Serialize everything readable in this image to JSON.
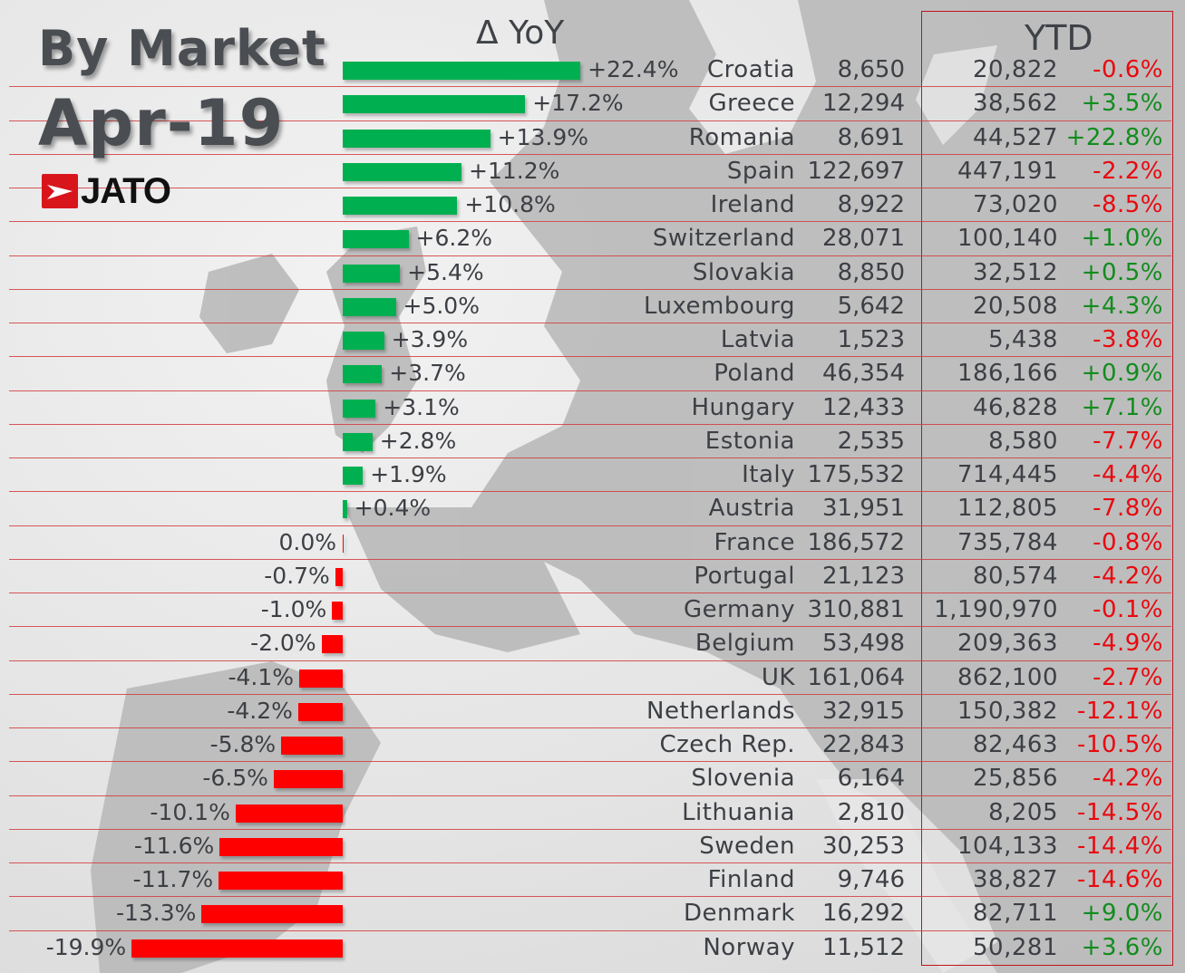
{
  "header": {
    "title_line1": "By Market",
    "title_line2": "Apr-19",
    "logo_text": "JATO",
    "yoy_header": "Δ YoY",
    "ytd_header": "YTD"
  },
  "colors": {
    "positive_bar": "#00b050",
    "negative_bar": "#ff0000",
    "ytd_positive": "#128c1e",
    "ytd_negative": "#e8090f",
    "grid_line": "#d23c3c",
    "logo_red": "#d9151c"
  },
  "rows": [
    {
      "country": "Croatia",
      "units": "8,650",
      "yoy": "+22.4%",
      "ytd_units": "20,822",
      "ytd_change": "-0.6%"
    },
    {
      "country": "Greece",
      "units": "12,294",
      "yoy": "+17.2%",
      "ytd_units": "38,562",
      "ytd_change": "+3.5%"
    },
    {
      "country": "Romania",
      "units": "8,691",
      "yoy": "+13.9%",
      "ytd_units": "44,527",
      "ytd_change": "+22.8%"
    },
    {
      "country": "Spain",
      "units": "122,697",
      "yoy": "+11.2%",
      "ytd_units": "447,191",
      "ytd_change": "-2.2%"
    },
    {
      "country": "Ireland",
      "units": "8,922",
      "yoy": "+10.8%",
      "ytd_units": "73,020",
      "ytd_change": "-8.5%"
    },
    {
      "country": "Switzerland",
      "units": "28,071",
      "yoy": "+6.2%",
      "ytd_units": "100,140",
      "ytd_change": "+1.0%"
    },
    {
      "country": "Slovakia",
      "units": "8,850",
      "yoy": "+5.4%",
      "ytd_units": "32,512",
      "ytd_change": "+0.5%"
    },
    {
      "country": "Luxembourg",
      "units": "5,642",
      "yoy": "+5.0%",
      "ytd_units": "20,508",
      "ytd_change": "+4.3%"
    },
    {
      "country": "Latvia",
      "units": "1,523",
      "yoy": "+3.9%",
      "ytd_units": "5,438",
      "ytd_change": "-3.8%"
    },
    {
      "country": "Poland",
      "units": "46,354",
      "yoy": "+3.7%",
      "ytd_units": "186,166",
      "ytd_change": "+0.9%"
    },
    {
      "country": "Hungary",
      "units": "12,433",
      "yoy": "+3.1%",
      "ytd_units": "46,828",
      "ytd_change": "+7.1%"
    },
    {
      "country": "Estonia",
      "units": "2,535",
      "yoy": "+2.8%",
      "ytd_units": "8,580",
      "ytd_change": "-7.7%"
    },
    {
      "country": "Italy",
      "units": "175,532",
      "yoy": "+1.9%",
      "ytd_units": "714,445",
      "ytd_change": "-4.4%"
    },
    {
      "country": "Austria",
      "units": "31,951",
      "yoy": "+0.4%",
      "ytd_units": "112,805",
      "ytd_change": "-7.8%"
    },
    {
      "country": "France",
      "units": "186,572",
      "yoy": "0.0%",
      "ytd_units": "735,784",
      "ytd_change": "-0.8%"
    },
    {
      "country": "Portugal",
      "units": "21,123",
      "yoy": "-0.7%",
      "ytd_units": "80,574",
      "ytd_change": "-4.2%"
    },
    {
      "country": "Germany",
      "units": "310,881",
      "yoy": "-1.0%",
      "ytd_units": "1,190,970",
      "ytd_change": "-0.1%"
    },
    {
      "country": "Belgium",
      "units": "53,498",
      "yoy": "-2.0%",
      "ytd_units": "209,363",
      "ytd_change": "-4.9%"
    },
    {
      "country": "UK",
      "units": "161,064",
      "yoy": "-4.1%",
      "ytd_units": "862,100",
      "ytd_change": "-2.7%"
    },
    {
      "country": "Netherlands",
      "units": "32,915",
      "yoy": "-4.2%",
      "ytd_units": "150,382",
      "ytd_change": "-12.1%"
    },
    {
      "country": "Czech Rep.",
      "units": "22,843",
      "yoy": "-5.8%",
      "ytd_units": "82,463",
      "ytd_change": "-10.5%"
    },
    {
      "country": "Slovenia",
      "units": "6,164",
      "yoy": "-6.5%",
      "ytd_units": "25,856",
      "ytd_change": "-4.2%"
    },
    {
      "country": "Lithuania",
      "units": "2,810",
      "yoy": "-10.1%",
      "ytd_units": "8,205",
      "ytd_change": "-14.5%"
    },
    {
      "country": "Sweden",
      "units": "30,253",
      "yoy": "-11.6%",
      "ytd_units": "104,133",
      "ytd_change": "-14.4%"
    },
    {
      "country": "Finland",
      "units": "9,746",
      "yoy": "-11.7%",
      "ytd_units": "38,827",
      "ytd_change": "-14.6%"
    },
    {
      "country": "Denmark",
      "units": "16,292",
      "yoy": "-13.3%",
      "ytd_units": "82,711",
      "ytd_change": "+9.0%"
    },
    {
      "country": "Norway",
      "units": "11,512",
      "yoy": "-19.9%",
      "ytd_units": "50,281",
      "ytd_change": "+3.6%"
    }
  ],
  "chart_data": {
    "type": "bar",
    "orientation": "horizontal",
    "title": "By Market Apr-19",
    "subtitle": "Δ YoY",
    "xlabel": "",
    "ylabel": "",
    "categories": [
      "Croatia",
      "Greece",
      "Romania",
      "Spain",
      "Ireland",
      "Switzerland",
      "Slovakia",
      "Luxembourg",
      "Latvia",
      "Poland",
      "Hungary",
      "Estonia",
      "Italy",
      "Austria",
      "France",
      "Portugal",
      "Germany",
      "Belgium",
      "UK",
      "Netherlands",
      "Czech Rep.",
      "Slovenia",
      "Lithuania",
      "Sweden",
      "Finland",
      "Denmark",
      "Norway"
    ],
    "series": [
      {
        "name": "Δ YoY (%)",
        "values": [
          22.4,
          17.2,
          13.9,
          11.2,
          10.8,
          6.2,
          5.4,
          5.0,
          3.9,
          3.7,
          3.1,
          2.8,
          1.9,
          0.4,
          0.0,
          -0.7,
          -1.0,
          -2.0,
          -4.1,
          -4.2,
          -5.8,
          -6.5,
          -10.1,
          -11.6,
          -11.7,
          -13.3,
          -19.9
        ]
      },
      {
        "name": "Apr-19 Units",
        "values": [
          8650,
          12294,
          8691,
          122697,
          8922,
          28071,
          8850,
          5642,
          1523,
          46354,
          12433,
          2535,
          175532,
          31951,
          186572,
          21123,
          310881,
          53498,
          161064,
          32915,
          22843,
          6164,
          2810,
          30253,
          9746,
          16292,
          11512
        ]
      },
      {
        "name": "YTD Units",
        "values": [
          20822,
          38562,
          44527,
          447191,
          73020,
          100140,
          32512,
          20508,
          5438,
          186166,
          46828,
          8580,
          714445,
          112805,
          735784,
          80574,
          1190970,
          209363,
          862100,
          150382,
          82463,
          25856,
          8205,
          104133,
          38827,
          82711,
          50281
        ]
      },
      {
        "name": "YTD Change (%)",
        "values": [
          -0.6,
          3.5,
          22.8,
          -2.2,
          -8.5,
          1.0,
          0.5,
          4.3,
          -3.8,
          0.9,
          7.1,
          -7.7,
          -4.4,
          -7.8,
          -0.8,
          -4.2,
          -0.1,
          -4.9,
          -2.7,
          -12.1,
          -10.5,
          -4.2,
          -14.5,
          -14.4,
          -14.6,
          9.0,
          3.6
        ]
      }
    ],
    "legend": "none",
    "grid": false,
    "xlim": [
      -20,
      23
    ]
  }
}
